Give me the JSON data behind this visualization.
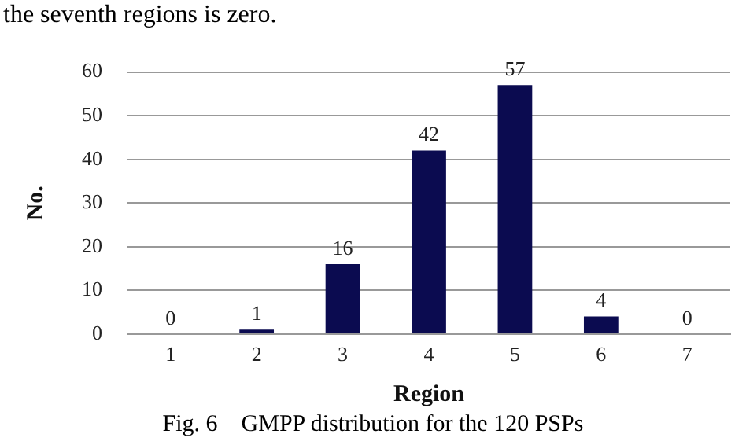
{
  "chart_data": {
    "type": "bar",
    "xlabel": "Region",
    "ylabel": "No.",
    "categories": [
      "1",
      "2",
      "3",
      "4",
      "5",
      "6",
      "7"
    ],
    "values": [
      0,
      1,
      16,
      42,
      57,
      4,
      0
    ],
    "color": "#0b0b50",
    "ylim": [
      0,
      60
    ],
    "yticks": [
      0,
      10,
      20,
      30,
      40,
      50,
      60
    ],
    "grid": "y",
    "data_labels": true,
    "annotations": [
      "the seventh regions is zero.",
      "Fig. 6    GMPP distribution for the 120 PSPs"
    ]
  }
}
